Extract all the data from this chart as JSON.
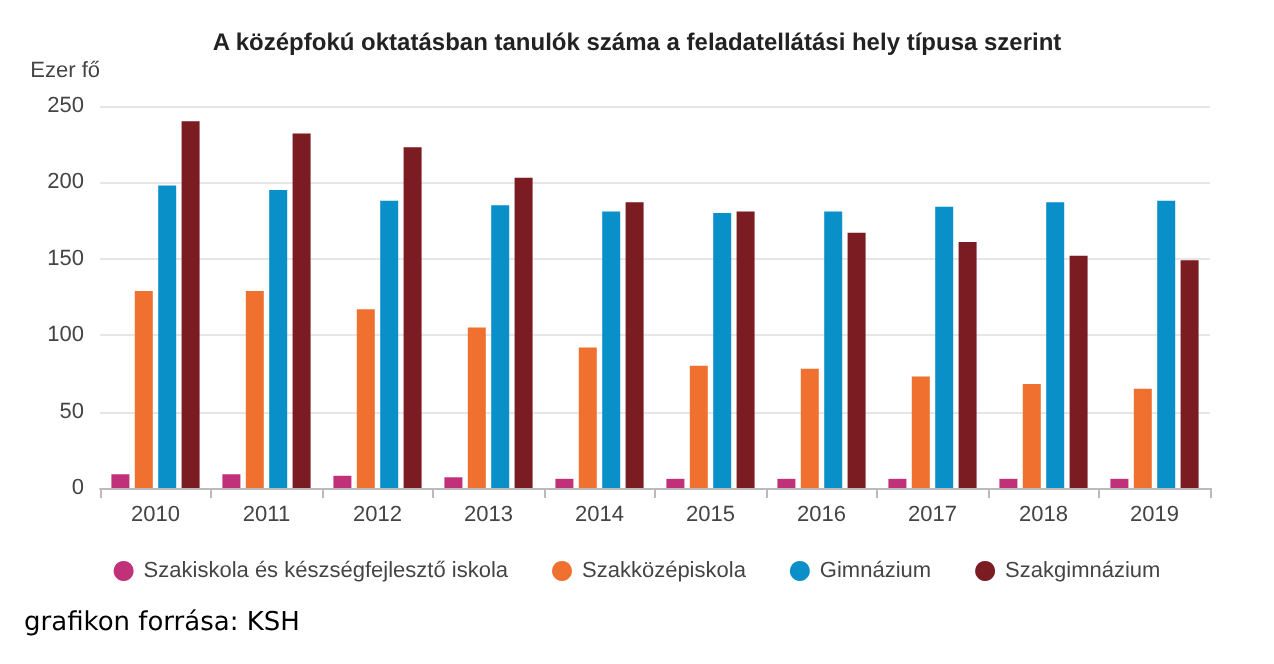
{
  "chart_data": {
    "type": "bar",
    "title": "A középfokú oktatásban tanulók száma a feladatellátási hely típusa szerint",
    "ylabel": "Ezer fő",
    "categories": [
      "2010",
      "2011",
      "2012",
      "2013",
      "2014",
      "2015",
      "2016",
      "2017",
      "2018",
      "2019"
    ],
    "series": [
      {
        "name": "Szakiskola és készségfejlesztő iskola",
        "color": "#c0317a",
        "values": [
          9,
          9,
          8,
          7,
          6,
          6,
          6,
          6,
          6,
          6
        ]
      },
      {
        "name": "Szakközépiskola",
        "color": "#f07030",
        "values": [
          129,
          129,
          117,
          105,
          92,
          80,
          78,
          73,
          68,
          65
        ]
      },
      {
        "name": "Gimnázium",
        "color": "#0a90c8",
        "values": [
          198,
          195,
          188,
          185,
          181,
          180,
          181,
          184,
          187,
          188
        ]
      },
      {
        "name": "Szakgimnázium",
        "color": "#7a1c22",
        "values": [
          240,
          232,
          223,
          203,
          187,
          181,
          167,
          161,
          152,
          149
        ]
      }
    ],
    "ylim": [
      0,
      250
    ],
    "yticks": [
      0,
      50,
      100,
      150,
      200,
      250
    ],
    "grid": "y",
    "legend": "bottom",
    "annotations": [
      "grafikon forrása: KSH"
    ]
  }
}
